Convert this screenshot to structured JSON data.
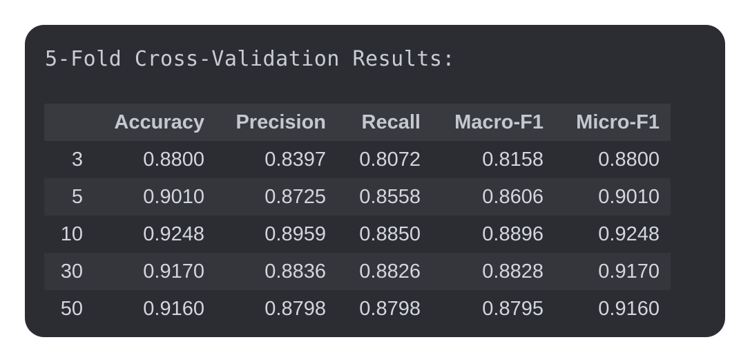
{
  "title": "5-Fold Cross-Validation Results:",
  "table": {
    "columns": [
      "",
      "Accuracy",
      "Precision",
      "Recall",
      "Macro-F1",
      "Micro-F1"
    ],
    "rows": [
      [
        "3",
        "0.8800",
        "0.8397",
        "0.8072",
        "0.8158",
        "0.8800"
      ],
      [
        "5",
        "0.9010",
        "0.8725",
        "0.8558",
        "0.8606",
        "0.9010"
      ],
      [
        "10",
        "0.9248",
        "0.8959",
        "0.8850",
        "0.8896",
        "0.9248"
      ],
      [
        "30",
        "0.9170",
        "0.8836",
        "0.8826",
        "0.8828",
        "0.9170"
      ],
      [
        "50",
        "0.9160",
        "0.8798",
        "0.8798",
        "0.8795",
        "0.9160"
      ]
    ]
  },
  "colors": {
    "panel_background": "#2b2d33",
    "header_background": "#383a40",
    "striped_row_background": "#34363c",
    "text": "#d3d6dc"
  }
}
